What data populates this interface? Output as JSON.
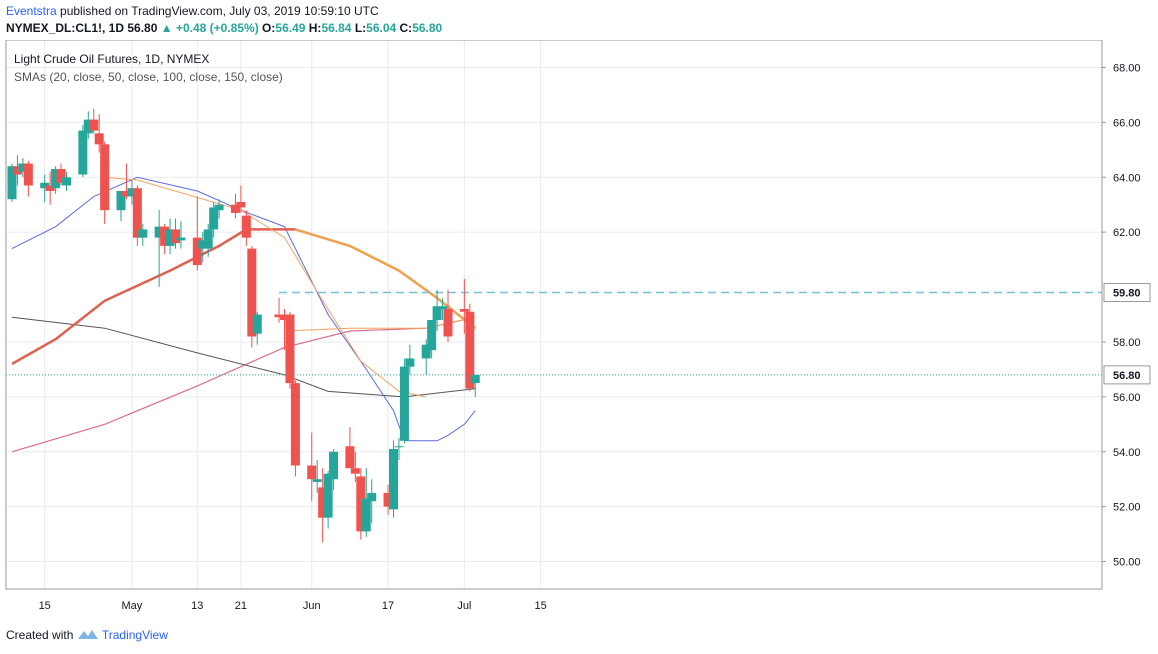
{
  "header": {
    "publisher": "Eventstra",
    "published_text": " published on TradingView.com, July 03, 2019 10:59:10 UTC",
    "symbol": "NYMEX_DL:CL1!, 1D",
    "last": "56.80",
    "change_arrow": "▲",
    "change": "+0.48 (+0.85%)",
    "o_label": "O:",
    "o_value": "56.49",
    "h_label": "H:",
    "h_value": "56.84",
    "l_label": "L:",
    "l_value": "56.04",
    "c_label": "C:",
    "c_value": "56.80"
  },
  "footer": {
    "created_with": "Created with",
    "brand": "TradingView"
  },
  "colors": {
    "up": "#26a69a",
    "down": "#ef5350",
    "grid": "#e8ebef",
    "sma20": "#5b6ce0",
    "sma50": "#f4a261",
    "sma100": "#555555",
    "sma150": "#e06c8a",
    "sma_thick": "#e06050",
    "sma_orange_thick": "#f0a050",
    "level": "#72bfd6"
  },
  "chart_data": {
    "type": "candlestick",
    "title": "Light Crude Oil Futures, 1D, NYMEX",
    "subtitle": "SMAs (20, close, 50, close, 100, close, 150, close)",
    "y_ticks": [
      "50.00",
      "52.00",
      "54.00",
      "56.00",
      "58.00",
      "59.80",
      "62.00",
      "64.00",
      "66.00",
      "68.00"
    ],
    "x_ticks": [
      "15",
      "May",
      "13",
      "21",
      "Jun",
      "17",
      "Jul",
      "15"
    ],
    "ylim": [
      49.0,
      69.0
    ],
    "price_label": "56.80",
    "level_label": "59.80",
    "level_value": 59.8,
    "candles": [
      {
        "date": "2019-04-09",
        "o": 63.2,
        "h": 64.5,
        "l": 63.1,
        "c": 64.4
      },
      {
        "date": "2019-04-10",
        "o": 64.4,
        "h": 64.8,
        "l": 63.7,
        "c": 64.1
      },
      {
        "date": "2019-04-11",
        "o": 64.2,
        "h": 64.7,
        "l": 64.0,
        "c": 64.5
      },
      {
        "date": "2019-04-12",
        "o": 64.5,
        "h": 64.6,
        "l": 63.3,
        "c": 63.7
      },
      {
        "date": "2019-04-15",
        "o": 63.6,
        "h": 64.1,
        "l": 63.1,
        "c": 63.8
      },
      {
        "date": "2019-04-16",
        "o": 63.7,
        "h": 64.2,
        "l": 63.0,
        "c": 63.5
      },
      {
        "date": "2019-04-17",
        "o": 63.6,
        "h": 64.4,
        "l": 63.4,
        "c": 64.3
      },
      {
        "date": "2019-04-18",
        "o": 64.3,
        "h": 64.5,
        "l": 63.7,
        "c": 63.8
      },
      {
        "date": "2019-04-19",
        "o": 63.7,
        "h": 64.2,
        "l": 63.5,
        "c": 64.0
      },
      {
        "date": "2019-04-22",
        "o": 64.1,
        "h": 65.9,
        "l": 64.0,
        "c": 65.7
      },
      {
        "date": "2019-04-23",
        "o": 65.6,
        "h": 66.4,
        "l": 65.4,
        "c": 66.1
      },
      {
        "date": "2019-04-24",
        "o": 66.1,
        "h": 66.5,
        "l": 65.6,
        "c": 65.7
      },
      {
        "date": "2019-04-25",
        "o": 65.6,
        "h": 66.3,
        "l": 64.9,
        "c": 65.2
      },
      {
        "date": "2019-04-26",
        "o": 65.2,
        "h": 65.3,
        "l": 62.3,
        "c": 62.8
      },
      {
        "date": "2019-04-29",
        "o": 62.8,
        "h": 63.5,
        "l": 62.4,
        "c": 63.5
      },
      {
        "date": "2019-04-30",
        "o": 63.5,
        "h": 64.5,
        "l": 63.2,
        "c": 63.3
      },
      {
        "date": "2019-05-01",
        "o": 63.3,
        "h": 63.9,
        "l": 63.0,
        "c": 63.6
      },
      {
        "date": "2019-05-02",
        "o": 63.6,
        "h": 63.7,
        "l": 61.5,
        "c": 61.8
      },
      {
        "date": "2019-05-03",
        "o": 61.8,
        "h": 62.3,
        "l": 61.5,
        "c": 62.1
      },
      {
        "date": "2019-05-06",
        "o": 61.8,
        "h": 62.8,
        "l": 60.0,
        "c": 62.2
      },
      {
        "date": "2019-05-07",
        "o": 62.2,
        "h": 62.3,
        "l": 61.2,
        "c": 61.5
      },
      {
        "date": "2019-05-08",
        "o": 61.5,
        "h": 62.5,
        "l": 61.2,
        "c": 62.1
      },
      {
        "date": "2019-05-09",
        "o": 62.1,
        "h": 62.5,
        "l": 61.4,
        "c": 61.6
      },
      {
        "date": "2019-05-10",
        "o": 61.7,
        "h": 62.4,
        "l": 61.4,
        "c": 61.8
      },
      {
        "date": "2019-05-13",
        "o": 61.8,
        "h": 63.3,
        "l": 60.6,
        "c": 60.8
      },
      {
        "date": "2019-05-14",
        "o": 61.4,
        "h": 62.0,
        "l": 60.9,
        "c": 61.7
      },
      {
        "date": "2019-05-15",
        "o": 61.4,
        "h": 62.3,
        "l": 61.1,
        "c": 62.1
      },
      {
        "date": "2019-05-16",
        "o": 62.1,
        "h": 63.1,
        "l": 61.8,
        "c": 62.9
      },
      {
        "date": "2019-05-17",
        "o": 62.8,
        "h": 63.2,
        "l": 62.5,
        "c": 63.0
      },
      {
        "date": "2019-05-20",
        "o": 63.0,
        "h": 63.4,
        "l": 62.5,
        "c": 62.7
      },
      {
        "date": "2019-05-21",
        "o": 63.1,
        "h": 63.7,
        "l": 62.7,
        "c": 62.9
      },
      {
        "date": "2019-05-22",
        "o": 62.6,
        "h": 62.8,
        "l": 61.5,
        "c": 61.8
      },
      {
        "date": "2019-05-23",
        "o": 61.4,
        "h": 61.5,
        "l": 57.8,
        "c": 58.2
      },
      {
        "date": "2019-05-24",
        "o": 58.3,
        "h": 59.1,
        "l": 57.9,
        "c": 59.0
      },
      {
        "date": "2019-05-28",
        "o": 59.0,
        "h": 59.6,
        "l": 58.7,
        "c": 58.9
      },
      {
        "date": "2019-05-29",
        "o": 59.0,
        "h": 59.2,
        "l": 57.7,
        "c": 58.8
      },
      {
        "date": "2019-05-30",
        "o": 59.0,
        "h": 59.1,
        "l": 56.3,
        "c": 56.5
      },
      {
        "date": "2019-05-31",
        "o": 56.5,
        "h": 56.6,
        "l": 53.1,
        "c": 53.5
      },
      {
        "date": "2019-06-03",
        "o": 53.5,
        "h": 54.7,
        "l": 52.2,
        "c": 53.0
      },
      {
        "date": "2019-06-04",
        "o": 52.9,
        "h": 53.7,
        "l": 52.5,
        "c": 53.0
      },
      {
        "date": "2019-06-05",
        "o": 52.7,
        "h": 53.4,
        "l": 50.7,
        "c": 51.6
      },
      {
        "date": "2019-06-06",
        "o": 51.6,
        "h": 53.3,
        "l": 51.2,
        "c": 53.2
      },
      {
        "date": "2019-06-07",
        "o": 53.0,
        "h": 54.1,
        "l": 52.6,
        "c": 54.0
      },
      {
        "date": "2019-06-10",
        "o": 54.2,
        "h": 54.9,
        "l": 53.5,
        "c": 53.4
      },
      {
        "date": "2019-06-11",
        "o": 53.4,
        "h": 54.0,
        "l": 52.9,
        "c": 53.2
      },
      {
        "date": "2019-06-12",
        "o": 53.1,
        "h": 53.4,
        "l": 50.8,
        "c": 51.1
      },
      {
        "date": "2019-06-13",
        "o": 51.1,
        "h": 53.4,
        "l": 50.9,
        "c": 52.3
      },
      {
        "date": "2019-06-14",
        "o": 52.2,
        "h": 53.0,
        "l": 51.4,
        "c": 52.5
      },
      {
        "date": "2019-06-17",
        "o": 52.5,
        "h": 52.8,
        "l": 51.7,
        "c": 52.0
      },
      {
        "date": "2019-06-18",
        "o": 51.9,
        "h": 54.4,
        "l": 51.6,
        "c": 54.1
      },
      {
        "date": "2019-06-19",
        "o": 54.2,
        "h": 54.5,
        "l": 53.7,
        "c": 54.2
      },
      {
        "date": "2019-06-20",
        "o": 54.4,
        "h": 57.4,
        "l": 54.3,
        "c": 57.1
      },
      {
        "date": "2019-06-21",
        "o": 57.1,
        "h": 57.9,
        "l": 56.8,
        "c": 57.4
      },
      {
        "date": "2019-06-24",
        "o": 57.4,
        "h": 58.1,
        "l": 56.8,
        "c": 57.9
      },
      {
        "date": "2019-06-25",
        "o": 57.7,
        "h": 58.8,
        "l": 57.4,
        "c": 58.8
      },
      {
        "date": "2019-06-26",
        "o": 58.8,
        "h": 59.9,
        "l": 58.4,
        "c": 59.3
      },
      {
        "date": "2019-06-27",
        "o": 59.2,
        "h": 59.6,
        "l": 58.8,
        "c": 59.3
      },
      {
        "date": "2019-06-28",
        "o": 59.2,
        "h": 59.9,
        "l": 58.0,
        "c": 58.2
      },
      {
        "date": "2019-07-01",
        "o": 59.2,
        "h": 60.3,
        "l": 58.3,
        "c": 59.1
      },
      {
        "date": "2019-07-02",
        "o": 59.1,
        "h": 59.4,
        "l": 56.2,
        "c": 56.3
      },
      {
        "date": "2019-07-03",
        "o": 56.5,
        "h": 56.8,
        "l": 56.0,
        "c": 56.8
      }
    ],
    "sma20": [
      [
        "2019-04-09",
        61.4
      ],
      [
        "2019-04-17",
        62.2
      ],
      [
        "2019-04-24",
        63.3
      ],
      [
        "2019-05-02",
        64.0
      ],
      [
        "2019-05-13",
        63.5
      ],
      [
        "2019-05-21",
        62.8
      ],
      [
        "2019-05-29",
        62.2
      ],
      [
        "2019-06-06",
        59.0
      ],
      [
        "2019-06-13",
        57.0
      ],
      [
        "2019-06-18",
        55.5
      ],
      [
        "2019-06-20",
        54.4
      ],
      [
        "2019-06-26",
        54.4
      ],
      [
        "2019-06-28",
        54.6
      ],
      [
        "2019-07-01",
        55.0
      ],
      [
        "2019-07-03",
        55.5
      ]
    ],
    "sma50": [
      [
        "2019-04-09",
        57.2
      ],
      [
        "2019-04-17",
        58.1
      ],
      [
        "2019-04-26",
        59.5
      ],
      [
        "2019-05-08",
        60.6
      ],
      [
        "2019-05-17",
        61.5
      ],
      [
        "2019-05-22",
        62.1
      ],
      [
        "2019-05-31",
        62.1
      ],
      [
        "2019-06-10",
        61.5
      ],
      [
        "2019-06-19",
        60.6
      ],
      [
        "2019-06-26",
        59.6
      ],
      [
        "2019-07-03",
        58.5
      ]
    ],
    "sma100": [
      [
        "2019-04-09",
        58.9
      ],
      [
        "2019-04-26",
        58.5
      ],
      [
        "2019-05-13",
        57.6
      ],
      [
        "2019-05-29",
        56.8
      ],
      [
        "2019-06-06",
        56.2
      ],
      [
        "2019-06-20",
        56.0
      ],
      [
        "2019-07-03",
        56.3
      ]
    ],
    "sma150": [
      [
        "2019-04-09",
        54.0
      ],
      [
        "2019-04-26",
        55.0
      ],
      [
        "2019-05-13",
        56.4
      ],
      [
        "2019-05-29",
        57.8
      ],
      [
        "2019-06-10",
        58.4
      ],
      [
        "2019-06-24",
        58.5
      ],
      [
        "2019-07-03",
        58.9
      ]
    ]
  }
}
